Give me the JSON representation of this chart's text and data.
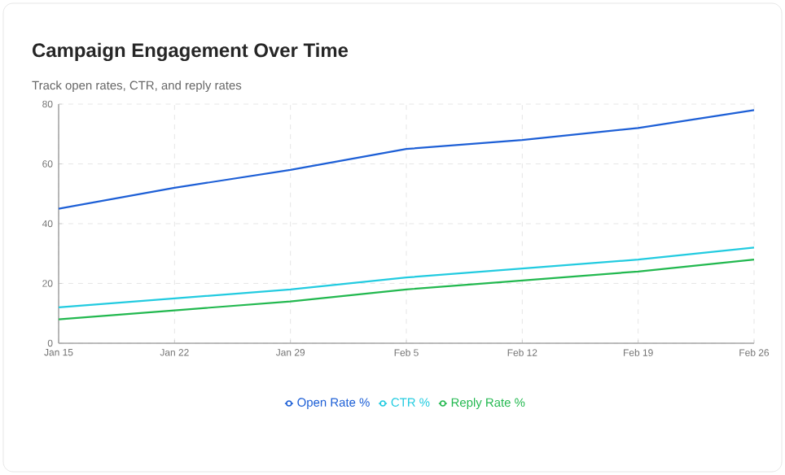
{
  "chart_data": {
    "type": "line",
    "title": "Campaign Engagement Over Time",
    "subtitle": "Track open rates, CTR, and reply rates",
    "categories": [
      "Jan 15",
      "Jan 22",
      "Jan 29",
      "Feb 5",
      "Feb 12",
      "Feb 19",
      "Feb 26"
    ],
    "series": [
      {
        "name": "Open Rate %",
        "color": "#1d5fd6",
        "values": [
          45,
          52,
          58,
          65,
          68,
          72,
          78
        ]
      },
      {
        "name": "CTR %",
        "color": "#22cbe0",
        "values": [
          12,
          15,
          18,
          22,
          25,
          28,
          32
        ]
      },
      {
        "name": "Reply Rate %",
        "color": "#22b84f",
        "values": [
          8,
          11,
          14,
          18,
          21,
          24,
          28
        ]
      }
    ],
    "ylim": [
      0,
      80
    ],
    "yticks": [
      0,
      20,
      40,
      60,
      80
    ],
    "grid": true,
    "legend": "bottom",
    "marker": "none",
    "line_style": "solid"
  }
}
